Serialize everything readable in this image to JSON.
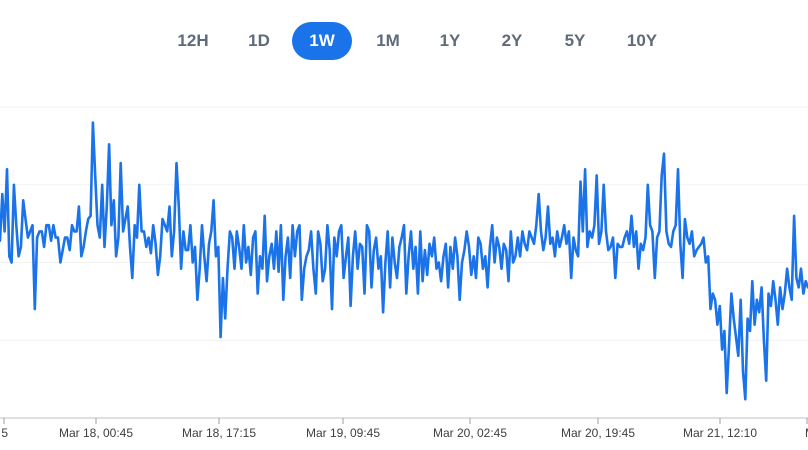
{
  "range_selector": {
    "options": [
      "12H",
      "1D",
      "1W",
      "1M",
      "1Y",
      "2Y",
      "5Y",
      "10Y"
    ],
    "selected": "1W",
    "accent_color": "#1a73e8"
  },
  "chart_data": {
    "type": "line",
    "title": "",
    "xlabel": "",
    "ylabel": "",
    "x_ticks": [
      "5",
      "Mar 18, 00:45",
      "Mar 18, 17:15",
      "Mar 19, 09:45",
      "Mar 20, 02:45",
      "Mar 20, 19:45",
      "Mar 21, 12:10",
      "M"
    ],
    "ylim": [
      0,
      100
    ],
    "grid": true,
    "line_color": "#1a73e8",
    "series": [
      {
        "values": [
          57,
          72,
          60,
          80,
          52,
          50,
          75,
          62,
          52,
          55,
          70,
          64,
          58,
          60,
          62,
          35,
          58,
          60,
          60,
          55,
          62,
          62,
          57,
          62,
          58,
          58,
          50,
          54,
          58,
          58,
          54,
          62,
          60,
          60,
          68,
          52,
          55,
          60,
          64,
          65,
          95,
          78,
          62,
          58,
          75,
          55,
          68,
          88,
          62,
          70,
          52,
          58,
          82,
          60,
          64,
          68,
          55,
          45,
          62,
          58,
          75,
          60,
          60,
          55,
          58,
          53,
          62,
          56,
          46,
          52,
          64,
          62,
          60,
          68,
          52,
          60,
          82,
          68,
          48,
          60,
          54,
          54,
          62,
          50,
          55,
          38,
          48,
          62,
          52,
          44,
          56,
          60,
          70,
          52,
          55,
          26,
          45,
          32,
          48,
          60,
          58,
          48,
          60,
          55,
          48,
          62,
          50,
          55,
          46,
          58,
          60,
          40,
          52,
          48,
          65,
          44,
          52,
          56,
          48,
          60,
          47,
          62,
          38,
          52,
          58,
          45,
          62,
          52,
          60,
          62,
          38,
          48,
          52,
          54,
          60,
          48,
          40,
          60,
          56,
          44,
          48,
          62,
          54,
          35,
          58,
          52,
          60,
          62,
          45,
          52,
          58,
          36,
          52,
          60,
          48,
          56,
          55,
          40,
          62,
          60,
          42,
          54,
          58,
          48,
          52,
          34,
          50,
          60,
          42,
          58,
          50,
          45,
          55,
          58,
          62,
          40,
          52,
          60,
          48,
          55,
          40,
          60,
          44,
          54,
          46,
          56,
          52,
          58,
          48,
          50,
          44,
          52,
          56,
          42,
          55,
          48,
          58,
          52,
          38,
          50,
          54,
          60,
          55,
          46,
          52,
          45,
          58,
          56,
          48,
          52,
          42,
          55,
          62,
          50,
          58,
          55,
          48,
          56,
          54,
          44,
          60,
          50,
          52,
          58,
          52,
          60,
          56,
          54,
          60,
          58,
          56,
          62,
          72,
          60,
          54,
          58,
          68,
          56,
          58,
          52,
          60,
          55,
          58,
          62,
          56,
          60,
          45,
          58,
          54,
          52,
          76,
          60,
          80,
          55,
          60,
          58,
          62,
          78,
          56,
          60,
          75,
          60,
          54,
          55,
          58,
          45,
          56,
          55,
          55,
          58,
          60,
          56,
          65,
          55,
          60,
          48,
          56,
          54,
          58,
          75,
          62,
          60,
          45,
          58,
          60,
          78,
          85,
          60,
          56,
          55,
          60,
          62,
          80,
          56,
          45,
          64,
          58,
          56,
          60,
          52,
          54,
          55,
          56,
          58,
          50,
          52,
          35,
          40,
          38,
          30,
          36,
          22,
          28,
          8,
          24,
          40,
          32,
          26,
          20,
          38,
          15,
          6,
          32,
          28,
          44,
          30,
          38,
          34,
          42,
          25,
          12,
          40,
          36,
          44,
          38,
          30,
          42,
          35,
          40,
          48,
          42,
          38,
          65,
          45,
          42,
          48,
          40,
          44,
          42
        ]
      }
    ]
  }
}
